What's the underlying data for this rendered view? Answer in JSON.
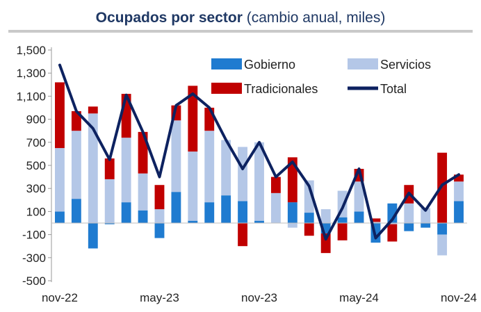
{
  "title": {
    "main": "Ocupados por sector",
    "sub": "(cambio anual, miles)"
  },
  "chart_data": {
    "type": "bar",
    "stacked": true,
    "x": [
      "nov-22",
      "dic-22",
      "ene-23",
      "feb-23",
      "mar-23",
      "abr-23",
      "may-23",
      "jun-23",
      "jul-23",
      "ago-23",
      "sep-23",
      "oct-23",
      "nov-23",
      "dic-23",
      "ene-24",
      "feb-24",
      "mar-24",
      "abr-24",
      "may-24",
      "jun-24",
      "jul-24",
      "ago-24",
      "sep-24",
      "oct-24",
      "nov-24"
    ],
    "x_tick_labels": [
      "nov-22",
      "may-23",
      "nov-23",
      "may-24",
      "nov-24"
    ],
    "series": [
      {
        "name": "Gobierno",
        "kind": "bar",
        "color": "#1f7bd0",
        "values": [
          100,
          210,
          -220,
          -10,
          180,
          110,
          -130,
          270,
          20,
          180,
          240,
          190,
          20,
          0,
          180,
          90,
          -90,
          50,
          100,
          -170,
          170,
          -70,
          -40,
          -100,
          190
        ]
      },
      {
        "name": "Servicios",
        "kind": "bar",
        "color": "#b4c7e7",
        "values": [
          550,
          590,
          950,
          380,
          560,
          320,
          120,
          620,
          600,
          620,
          480,
          470,
          680,
          260,
          -40,
          280,
          120,
          230,
          260,
          10,
          -10,
          170,
          130,
          -180,
          170
        ]
      },
      {
        "name": "Tradicionales",
        "kind": "bar",
        "color": "#c00000",
        "values": [
          570,
          170,
          60,
          180,
          380,
          360,
          210,
          130,
          570,
          200,
          0,
          -200,
          0,
          140,
          390,
          -110,
          -170,
          -150,
          110,
          30,
          -150,
          160,
          0,
          610,
          60
        ]
      },
      {
        "name": "Total",
        "kind": "line",
        "color": "#0d2260",
        "values": [
          1370,
          970,
          820,
          550,
          1110,
          790,
          400,
          1020,
          1120,
          1000,
          720,
          470,
          700,
          400,
          530,
          320,
          -140,
          130,
          470,
          -130,
          30,
          260,
          110,
          330,
          420
        ]
      }
    ],
    "y_ticks": [
      1500,
      1300,
      1100,
      900,
      700,
      500,
      300,
      100,
      -100,
      -300,
      -500
    ],
    "y_tick_labels": [
      "1,500",
      "1,300",
      "1,100",
      "900",
      "700",
      "500",
      "300",
      "100",
      "-100",
      "-300",
      "-500"
    ],
    "ylim": [
      -500,
      1500
    ],
    "grid": false,
    "legend": "top-right, inside plot"
  }
}
